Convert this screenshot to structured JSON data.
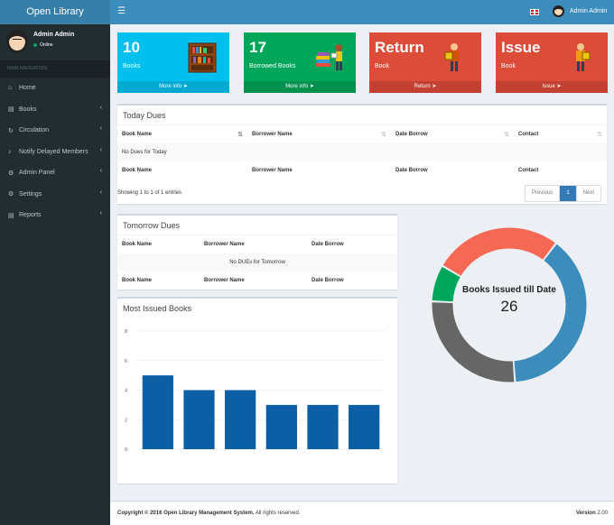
{
  "app": {
    "logo": "Open Library"
  },
  "navbar": {
    "user_name": "Admin Admin"
  },
  "sidebar": {
    "user_name": "Admin Admin",
    "user_status": "Online",
    "nav_header": "MAIN NAVIGATION",
    "items": [
      {
        "label": "Home",
        "icon": "home-icon",
        "has_children": false
      },
      {
        "label": "Books",
        "icon": "book-icon",
        "has_children": true
      },
      {
        "label": "Circulation",
        "icon": "refresh-icon",
        "has_children": true
      },
      {
        "label": "Notify Delayed Members",
        "icon": "bell-icon",
        "has_children": true
      },
      {
        "label": "Admin Panel",
        "icon": "cog-icon",
        "has_children": true
      },
      {
        "label": "Settings",
        "icon": "cogs-icon",
        "has_children": true
      },
      {
        "label": "Reports",
        "icon": "report-icon",
        "has_children": true
      }
    ]
  },
  "stats": [
    {
      "value": "10",
      "label": "Books",
      "footer": "More info",
      "color": "#00c0ef"
    },
    {
      "value": "17",
      "label": "Borrowed Books",
      "footer": "More info",
      "color": "#00a65a"
    },
    {
      "value": "Return",
      "label": "Book",
      "footer": "Return",
      "color": "#dd4b39"
    },
    {
      "value": "Issue",
      "label": "Book",
      "footer": "Issue",
      "color": "#dd4b39"
    }
  ],
  "today_dues": {
    "title": "Today Dues",
    "columns": [
      "Book Name",
      "Borrower Name",
      "Date Borrow",
      "Contact"
    ],
    "empty": "No Dues for Today",
    "info": "Showing 1 to 1 of 1 entries",
    "pager": {
      "prev": "Previous",
      "page": "1",
      "next": "Next"
    }
  },
  "tomorrow_dues": {
    "title": "Tomorrow Dues",
    "columns": [
      "Book Name",
      "Borrower Name",
      "Date Borrow"
    ],
    "empty": "No DUEs for Tomorrow"
  },
  "most_issued": {
    "title": "Most Issued Books"
  },
  "donut": {
    "label": "Books Issued till Date",
    "value": "26"
  },
  "footer": {
    "copyright": "Copyright © 2016 Open Library Management System.",
    "rights": "All rights reserved.",
    "version_label": "Version",
    "version": "2.00"
  },
  "chart_data": [
    {
      "type": "bar",
      "categories": [
        "",
        "",
        "",
        "",
        "",
        ""
      ],
      "values": [
        5,
        4,
        4,
        3,
        3,
        3
      ],
      "ylim": [
        0,
        8
      ],
      "yticks": [
        "0",
        "2",
        "4",
        "6",
        "8"
      ],
      "color": "#0d5fa5"
    },
    {
      "type": "pie",
      "slices": [
        {
          "value": 10,
          "color": "#3c8dbc"
        },
        {
          "value": 7,
          "color": "#666666"
        },
        {
          "value": 2,
          "color": "#00a65a"
        },
        {
          "value": 7,
          "color": "#f56954"
        }
      ]
    }
  ]
}
